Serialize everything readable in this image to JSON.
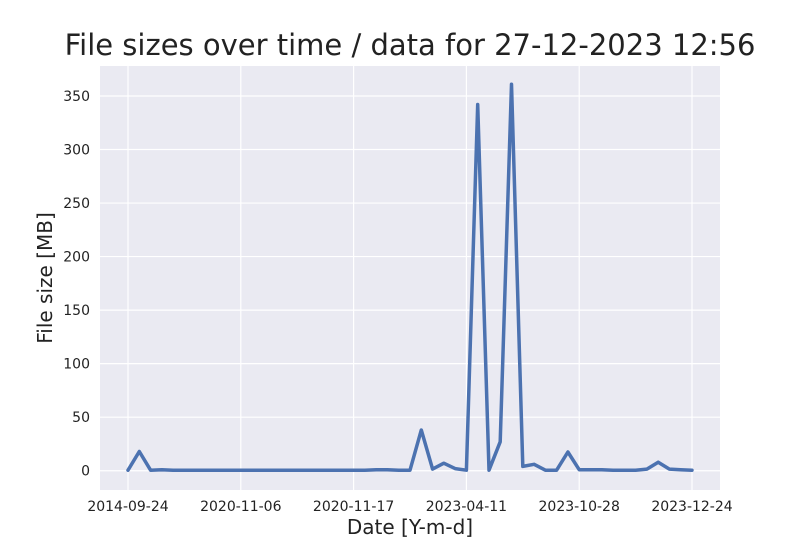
{
  "chart_data": {
    "type": "line",
    "title": "File sizes over time / data for 27-12-2023 12:56",
    "xlabel": "Date [Y-m-d]",
    "ylabel": "File size [MB]",
    "x_tick_labels": [
      "2014-09-24",
      "2020-11-06",
      "2020-11-17",
      "2023-04-11",
      "2023-10-28",
      "2023-12-24"
    ],
    "y_ticks": [
      0,
      50,
      100,
      150,
      200,
      250,
      300,
      350
    ],
    "ylim": [
      -18,
      378
    ],
    "grid": true,
    "style": "seaborn-darkgrid",
    "line_color": "#4c72b0",
    "background_color": "#eaeaf2",
    "grid_color": "#ffffff",
    "series": [
      {
        "values": [
          0.5,
          18,
          0.5,
          1,
          0.5,
          0.5,
          0.5,
          0.5,
          0.5,
          0.5,
          0.5,
          0.5,
          0.5,
          0.5,
          0.5,
          0.5,
          0.5,
          0.5,
          0.5,
          0.5,
          0.5,
          0.5,
          1,
          1,
          0.5,
          0.5,
          38,
          1.5,
          7,
          2,
          0.5,
          342,
          0.5,
          27,
          361,
          4,
          6,
          0.5,
          0.5,
          17.5,
          1,
          1,
          1,
          0.5,
          0.5,
          0.5,
          1.5,
          8,
          1.5,
          1,
          0.5
        ]
      }
    ]
  }
}
